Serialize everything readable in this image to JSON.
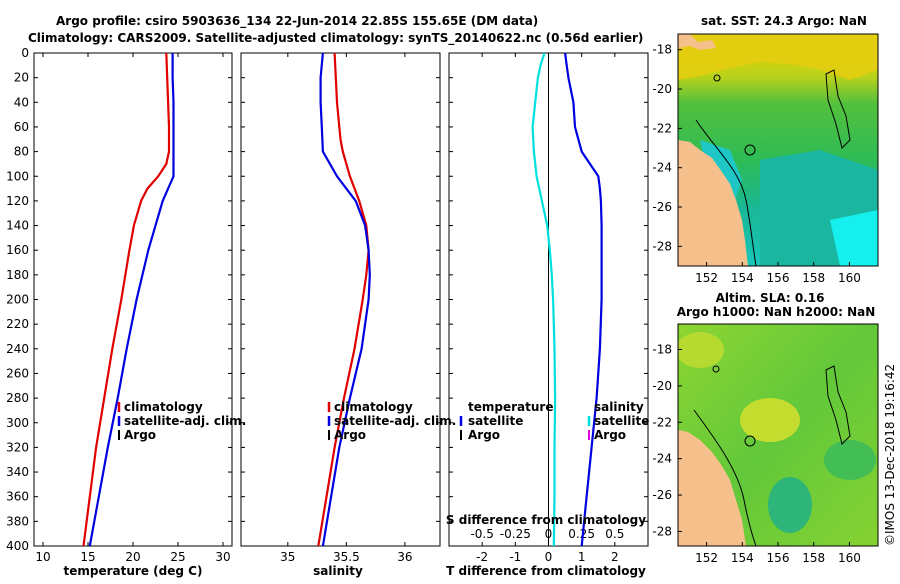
{
  "title": {
    "line1": "Argo profile: csiro 5903636_134 22-Jun-2014 22.85S 155.65E (DM data)",
    "line2": "Climatology: CARS2009. Satellite-adjusted climatology: synTS_20140622.nc (0.56d earlier)"
  },
  "colors": {
    "climatology": "#e00000",
    "satellite": "#0000e0",
    "argo": "#000000",
    "sdiff": "#00e0e0"
  },
  "chart_data": [
    {
      "type": "line",
      "id": "temperature",
      "title": "",
      "xlabel": "temperature (deg C)",
      "ylabel": "",
      "xlim": [
        9,
        31
      ],
      "ylim": [
        400,
        0
      ],
      "xticks": [
        "10",
        "15",
        "20",
        "25",
        "30"
      ],
      "yticks": [
        "0",
        "20",
        "40",
        "60",
        "80",
        "100",
        "120",
        "140",
        "160",
        "180",
        "200",
        "220",
        "240",
        "260",
        "280",
        "300",
        "320",
        "340",
        "360",
        "380",
        "400"
      ],
      "legend": [
        "climatology",
        "satellite-adj. clim.",
        "Argo"
      ],
      "series": [
        {
          "name": "climatology",
          "depth": [
            0,
            20,
            40,
            60,
            80,
            90,
            100,
            110,
            120,
            140,
            160,
            200,
            240,
            280,
            320,
            360,
            400
          ],
          "values": [
            23.7,
            23.8,
            23.9,
            24.0,
            24.0,
            23.7,
            22.8,
            21.6,
            20.9,
            20.1,
            19.6,
            18.7,
            17.7,
            16.8,
            15.9,
            15.2,
            14.5
          ]
        },
        {
          "name": "satellite-adj. clim.",
          "depth": [
            0,
            20,
            40,
            60,
            80,
            100,
            110,
            120,
            140,
            160,
            200,
            240,
            280,
            320,
            360,
            400
          ],
          "values": [
            24.4,
            24.4,
            24.5,
            24.5,
            24.5,
            24.5,
            23.9,
            23.3,
            22.5,
            21.7,
            20.4,
            19.3,
            18.3,
            17.2,
            16.2,
            15.2
          ]
        }
      ]
    },
    {
      "type": "line",
      "id": "salinity",
      "title": "",
      "xlabel": "salinity",
      "ylabel": "",
      "xlim": [
        34.6,
        36.3
      ],
      "ylim": [
        400,
        0
      ],
      "xticks": [
        "35",
        "35.5",
        "36"
      ],
      "legend": [
        "climatology",
        "satellite-adj. clim.",
        "Argo"
      ],
      "series": [
        {
          "name": "climatology",
          "depth": [
            0,
            20,
            40,
            60,
            70,
            80,
            100,
            120,
            140,
            160,
            180,
            200,
            240,
            280,
            320,
            360,
            400
          ],
          "values": [
            35.4,
            35.41,
            35.42,
            35.44,
            35.45,
            35.47,
            35.53,
            35.61,
            35.67,
            35.69,
            35.67,
            35.64,
            35.57,
            35.48,
            35.4,
            35.33,
            35.26
          ]
        },
        {
          "name": "satellite-adj. clim.",
          "depth": [
            0,
            20,
            40,
            60,
            80,
            100,
            120,
            140,
            160,
            180,
            200,
            240,
            280,
            320,
            360,
            400
          ],
          "values": [
            35.3,
            35.28,
            35.28,
            35.29,
            35.3,
            35.42,
            35.58,
            35.66,
            35.69,
            35.7,
            35.69,
            35.63,
            35.53,
            35.44,
            35.37,
            35.3
          ]
        }
      ]
    },
    {
      "type": "line",
      "id": "difference",
      "title": "",
      "xlabel": "T difference from climatology",
      "xlabel2": "S difference from climatology",
      "ylabel": "",
      "xlim": [
        -3,
        3
      ],
      "ylim": [
        400,
        0
      ],
      "xticks": [
        "-2",
        "-1",
        "0",
        "1",
        "2"
      ],
      "x2ticks": [
        "-0.5",
        "-0.25",
        "0",
        "0.25",
        "0.5"
      ],
      "legend_left": [
        "temperature",
        "satellite",
        "Argo"
      ],
      "legend_right": [
        "salinity",
        "satellite",
        "Argo"
      ],
      "series": [
        {
          "name": "temperature satellite",
          "depth": [
            0,
            10,
            20,
            40,
            60,
            80,
            100,
            110,
            120,
            140,
            160,
            200,
            240,
            280,
            320,
            360,
            400
          ],
          "values": [
            0.5,
            0.55,
            0.6,
            0.75,
            0.8,
            1.0,
            1.5,
            1.55,
            1.58,
            1.6,
            1.6,
            1.6,
            1.55,
            1.45,
            1.3,
            1.15,
            1.0
          ]
        },
        {
          "name": "salinity satellite",
          "x2lim": [
            -0.75,
            0.75
          ],
          "depth": [
            0,
            10,
            20,
            40,
            60,
            80,
            100,
            120,
            140,
            160,
            180,
            200,
            240,
            280,
            320,
            360,
            400
          ],
          "values": [
            -0.03,
            -0.06,
            -0.08,
            -0.1,
            -0.12,
            -0.11,
            -0.09,
            -0.05,
            -0.01,
            0.01,
            0.025,
            0.035,
            0.045,
            0.05,
            0.045,
            0.045,
            0.04
          ]
        }
      ]
    }
  ],
  "maps": {
    "sst": {
      "title": "sat. SST: 24.3 Argo: NaN",
      "lat_ticks": [
        "-18",
        "-20",
        "-22",
        "-24",
        "-26",
        "-28"
      ],
      "lon_ticks": [
        "152",
        "154",
        "156",
        "158",
        "160"
      ]
    },
    "sla": {
      "title1": "Altim. SLA: 0.16",
      "title2": "Argo h1000: NaN h2000: NaN",
      "lat_ticks": [
        "-18",
        "-20",
        "-22",
        "-24",
        "-26",
        "-28"
      ],
      "lon_ticks": [
        "152",
        "154",
        "156",
        "158",
        "160"
      ]
    }
  },
  "footer": "©IMOS 13-Dec-2018 19:16:42"
}
